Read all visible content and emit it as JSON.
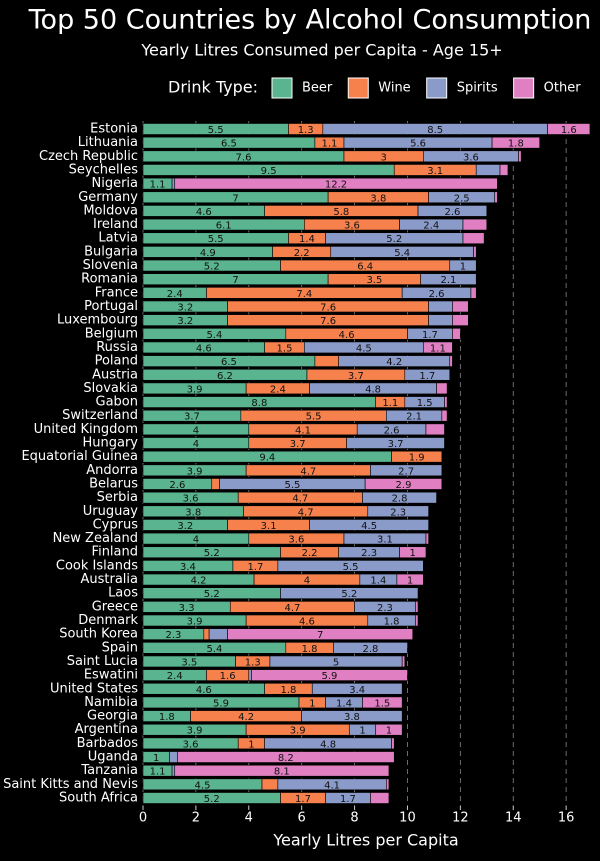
{
  "chart_data": {
    "type": "stacked-barh",
    "title": "Top 50 Countries by Alcohol Consumption",
    "subtitle": "Yearly Litres Consumed per Capita - Age 15+",
    "legend_title": "Drink Type:",
    "x_label": "Yearly Litres per Capita",
    "categories": [
      "Estonia",
      "Lithuania",
      "Czech Republic",
      "Seychelles",
      "Nigeria",
      "Germany",
      "Moldova",
      "Ireland",
      "Latvia",
      "Bulgaria",
      "Slovenia",
      "Romania",
      "France",
      "Portugal",
      "Luxembourg",
      "Belgium",
      "Russia",
      "Poland",
      "Austria",
      "Slovakia",
      "Gabon",
      "Switzerland",
      "United Kingdom",
      "Hungary",
      "Equatorial Guinea",
      "Andorra",
      "Belarus",
      "Serbia",
      "Uruguay",
      "Cyprus",
      "New Zealand",
      "Finland",
      "Cook Islands",
      "Australia",
      "Laos",
      "Greece",
      "Denmark",
      "South Korea",
      "Spain",
      "Saint Lucia",
      "Eswatini",
      "United States",
      "Namibia",
      "Georgia",
      "Argentina",
      "Barbados",
      "Uganda",
      "Tanzania",
      "Saint Kitts and Nevis",
      "South Africa"
    ],
    "series": [
      {
        "name": "Beer",
        "color": "#59b48f",
        "values": [
          5.5,
          6.5,
          7.6,
          9.5,
          1.1,
          7,
          4.6,
          6.1,
          5.5,
          4.9,
          5.2,
          7,
          2.4,
          3.2,
          3.2,
          5.4,
          4.6,
          6.5,
          6.2,
          3.9,
          8.8,
          3.7,
          4,
          4,
          9.4,
          3.9,
          2.6,
          3.6,
          3.8,
          3.2,
          4,
          5.2,
          3.4,
          4.2,
          5.2,
          3.3,
          3.9,
          2.3,
          5.4,
          3.5,
          2.4,
          4.6,
          5.9,
          1.8,
          3.9,
          3.6,
          1,
          1.1,
          4.5,
          5.2
        ],
        "value_labels": [
          "5.5",
          "6.5",
          "7.6",
          "9.5",
          "1.1",
          "7",
          "4.6",
          "6.1",
          "5.5",
          "4.9",
          "5.2",
          "7",
          "2.4",
          "3.2",
          "3.2",
          "5.4",
          "4.6",
          "6.5",
          "6.2",
          "3.9",
          "8.8",
          "3.7",
          "4",
          "4",
          "9.4",
          "3.9",
          "2.6",
          "3.6",
          "3.8",
          "3.2",
          "4",
          "5.2",
          "3.4",
          "4.2",
          "5.2",
          "3.3",
          "3.9",
          "2.3",
          "5.4",
          "3.5",
          "2.4",
          "4.6",
          "5.9",
          "1.8",
          "3.9",
          "3.6",
          "1",
          "1.1",
          "4.5",
          "5.2"
        ]
      },
      {
        "name": "Wine",
        "color": "#f7814c",
        "values": [
          1.3,
          1.1,
          3,
          3.1,
          0,
          3.8,
          5.8,
          3.6,
          1.4,
          2.2,
          6.4,
          3.5,
          7.4,
          7.6,
          7.6,
          4.6,
          1.5,
          0.9,
          3.7,
          2.4,
          1.1,
          5.5,
          4.1,
          3.7,
          1.9,
          4.7,
          0.3,
          4.7,
          4.7,
          3.1,
          3.6,
          2.2,
          1.7,
          4,
          0,
          4.7,
          4.6,
          0.2,
          1.8,
          1.3,
          1.6,
          1.8,
          1,
          4.2,
          3.9,
          1,
          0,
          0,
          0.6,
          1.7
        ],
        "value_labels": [
          "1.3",
          "1.1",
          "3",
          "3.1",
          null,
          "3.8",
          "5.8",
          "3.6",
          "1.4",
          "2.2",
          "6.4",
          "3.5",
          "7.4",
          "7.6",
          "7.6",
          "4.6",
          "1.5",
          null,
          "3.7",
          "2.4",
          "1.1",
          "5.5",
          "4.1",
          "3.7",
          "1.9",
          "4.7",
          null,
          "4.7",
          "4.7",
          "3.1",
          "3.6",
          "2.2",
          "1.7",
          "4",
          null,
          "4.7",
          "4.6",
          null,
          "1.8",
          "1.3",
          "1.6",
          "1.8",
          "1",
          "4.2",
          "3.9",
          "1",
          null,
          null,
          null,
          "1.7"
        ]
      },
      {
        "name": "Spirits",
        "color": "#8b9bc9",
        "values": [
          8.5,
          5.6,
          3.6,
          0.9,
          0.1,
          2.5,
          2.6,
          2.4,
          5.2,
          5.4,
          1,
          2.1,
          2.6,
          0.9,
          0.9,
          1.7,
          4.5,
          4.2,
          1.7,
          4.8,
          1.5,
          2.1,
          2.6,
          3.7,
          0,
          2.7,
          5.5,
          2.8,
          2.3,
          4.5,
          3.1,
          2.3,
          5.5,
          1.4,
          5.2,
          2.3,
          1.8,
          0.7,
          2.8,
          5,
          0.1,
          3.4,
          1.4,
          3.8,
          1,
          4.8,
          0.3,
          0.1,
          4.1,
          1.7
        ],
        "value_labels": [
          "8.5",
          "5.6",
          "3.6",
          null,
          null,
          "2.5",
          "2.6",
          "2.4",
          "5.2",
          "5.4",
          "1",
          "2.1",
          "2.6",
          null,
          null,
          "1.7",
          "4.5",
          "4.2",
          "1.7",
          "4.8",
          "1.5",
          "2.1",
          "2.6",
          "3.7",
          null,
          "2.7",
          "5.5",
          "2.8",
          "2.3",
          "4.5",
          "3.1",
          "2.3",
          "5.5",
          "1.4",
          "5.2",
          "2.3",
          "1.8",
          null,
          "2.8",
          "5",
          null,
          "3.4",
          "1.4",
          "3.8",
          "1",
          "4.8",
          null,
          null,
          "4.1",
          "1.7"
        ]
      },
      {
        "name": "Other",
        "color": "#e07fc1",
        "values": [
          1.6,
          1.8,
          0.1,
          0.3,
          12.2,
          0.1,
          0,
          0.9,
          0.8,
          0.1,
          0,
          0,
          0.2,
          0.6,
          0.6,
          0.3,
          1.1,
          0.1,
          0,
          0.4,
          0.1,
          0.2,
          0.7,
          0,
          0,
          0,
          2.9,
          0,
          0,
          0,
          0.1,
          1,
          0,
          1,
          0,
          0.1,
          0.1,
          7,
          0,
          0.1,
          5.9,
          0,
          1.5,
          0,
          1,
          0.1,
          8.2,
          8.1,
          0.1,
          0.7
        ],
        "value_labels": [
          "1.6",
          "1.8",
          null,
          null,
          "12.2",
          null,
          null,
          null,
          null,
          null,
          null,
          null,
          null,
          null,
          null,
          null,
          "1.1",
          null,
          null,
          null,
          null,
          null,
          null,
          null,
          null,
          null,
          "2.9",
          null,
          null,
          null,
          null,
          "1",
          null,
          "1",
          null,
          null,
          null,
          "7",
          null,
          null,
          "5.9",
          null,
          "1.5",
          null,
          "1",
          null,
          "8.2",
          "8.1",
          null,
          null
        ]
      }
    ],
    "xlim": [
      0,
      16.6
    ],
    "xticks": [
      0,
      2,
      4,
      6,
      8,
      10,
      12,
      14,
      16
    ],
    "grid": true
  }
}
